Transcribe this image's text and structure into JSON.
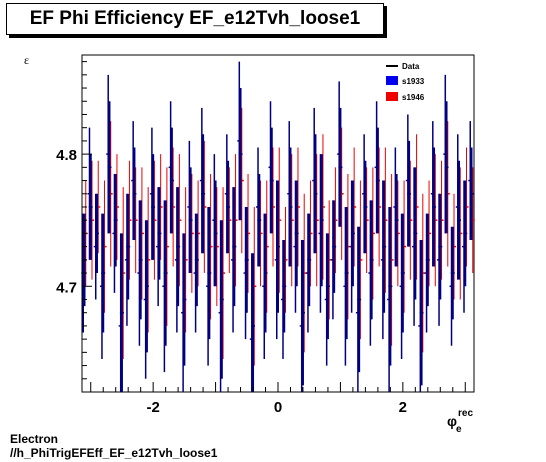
{
  "title": "EF Phi Efficiency EF_e12Tvh_loose1",
  "footer": {
    "line1": "Electron",
    "line2": "//h_PhiTrigEFEff_EF_e12Tvh_loose1"
  },
  "chart_data": {
    "type": "scatter",
    "title": "EF Phi Efficiency EF_e12Tvh_loose1",
    "ylabel": "ε",
    "xlabel": "φ",
    "xlabel_sup": "rec",
    "xlabel_sub": "e",
    "xlim": [
      -3.14,
      3.14
    ],
    "ylim": [
      4.62,
      4.875
    ],
    "xticks": [
      -2,
      0,
      2
    ],
    "yticks": [
      4.7,
      4.8
    ],
    "grid": false,
    "legend_position": "top-right",
    "legend": [
      "Data",
      "s1933",
      "s1946"
    ],
    "colors": {
      "Data": "#000000",
      "s1933": "#0000ee",
      "s1946": "#ee0000",
      "main": "#000080"
    },
    "series": [
      {
        "name": "Data",
        "x": [
          -3.1,
          -3.0,
          -2.9,
          -2.8,
          -2.7,
          -2.6,
          -2.5,
          -2.4,
          -2.3,
          -2.2,
          -2.1,
          -2.0,
          -1.9,
          -1.8,
          -1.7,
          -1.6,
          -1.5,
          -1.4,
          -1.3,
          -1.2,
          -1.1,
          -1.0,
          -0.9,
          -0.8,
          -0.7,
          -0.6,
          -0.5,
          -0.4,
          -0.3,
          -0.2,
          -0.1,
          0.0,
          0.1,
          0.2,
          0.3,
          0.4,
          0.5,
          0.6,
          0.7,
          0.8,
          0.9,
          1.0,
          1.1,
          1.2,
          1.3,
          1.4,
          1.5,
          1.6,
          1.7,
          1.8,
          1.9,
          2.0,
          2.1,
          2.2,
          2.3,
          2.4,
          2.5,
          2.6,
          2.7,
          2.8,
          2.9,
          3.0,
          3.1
        ],
        "y": [
          4.72,
          4.76,
          4.74,
          4.71,
          4.79,
          4.75,
          4.68,
          4.73,
          4.77,
          4.72,
          4.7,
          4.76,
          4.74,
          4.71,
          4.78,
          4.73,
          4.69,
          4.75,
          4.72,
          4.77,
          4.71,
          4.74,
          4.69,
          4.76,
          4.73,
          4.8,
          4.72,
          4.67,
          4.75,
          4.71,
          4.78,
          4.73,
          4.7,
          4.76,
          4.74,
          4.68,
          4.72,
          4.77,
          4.75,
          4.7,
          4.73,
          4.79,
          4.71,
          4.74,
          4.69,
          4.76,
          4.72,
          4.78,
          4.73,
          4.7,
          4.75,
          4.71,
          4.77,
          4.74,
          4.68,
          4.72,
          4.76,
          4.73,
          4.79,
          4.71,
          4.75,
          4.74,
          4.77
        ],
        "err": [
          0.035,
          0.04,
          0.03,
          0.045,
          0.05,
          0.035,
          0.06,
          0.04,
          0.035,
          0.045,
          0.05,
          0.04,
          0.035,
          0.055,
          0.04,
          0.045,
          0.05,
          0.04,
          0.035,
          0.045,
          0.05,
          0.04,
          0.06,
          0.035,
          0.045,
          0.05,
          0.04,
          0.055,
          0.035,
          0.045,
          0.04,
          0.05,
          0.035,
          0.045,
          0.04,
          0.055,
          0.035,
          0.045,
          0.05,
          0.04,
          0.035,
          0.045,
          0.05,
          0.04,
          0.055,
          0.035,
          0.045,
          0.04,
          0.05,
          0.06,
          0.035,
          0.045,
          0.04,
          0.05,
          0.055,
          0.035,
          0.045,
          0.04,
          0.05,
          0.035,
          0.045,
          0.04,
          0.035
        ]
      },
      {
        "name": "s1933",
        "x": [
          -3.12,
          -3.02,
          -2.92,
          -2.82,
          -2.72,
          -2.62,
          -2.52,
          -2.42,
          -2.32,
          -2.22,
          -2.12,
          -2.02,
          -1.92,
          -1.82,
          -1.72,
          -1.62,
          -1.52,
          -1.42,
          -1.32,
          -1.22,
          -1.12,
          -1.02,
          -0.92,
          -0.82,
          -0.72,
          -0.62,
          -0.52,
          -0.42,
          -0.32,
          -0.22,
          -0.12,
          -0.02,
          0.08,
          0.18,
          0.28,
          0.38,
          0.48,
          0.58,
          0.68,
          0.78,
          0.88,
          0.98,
          1.08,
          1.18,
          1.28,
          1.38,
          1.48,
          1.58,
          1.68,
          1.78,
          1.88,
          1.98,
          2.08,
          2.18,
          2.28,
          2.38,
          2.48,
          2.58,
          2.68,
          2.78,
          2.88,
          2.98,
          3.08
        ],
        "y": [
          4.71,
          4.77,
          4.73,
          4.7,
          4.8,
          4.74,
          4.67,
          4.72,
          4.78,
          4.71,
          4.69,
          4.77,
          4.73,
          4.7,
          4.79,
          4.72,
          4.68,
          4.76,
          4.71,
          4.78,
          4.7,
          4.75,
          4.68,
          4.77,
          4.72,
          4.81,
          4.71,
          4.66,
          4.76,
          4.7,
          4.79,
          4.72,
          4.69,
          4.77,
          4.73,
          4.67,
          4.71,
          4.78,
          4.74,
          4.69,
          4.72,
          4.8,
          4.7,
          4.73,
          4.68,
          4.77,
          4.71,
          4.79,
          4.72,
          4.69,
          4.76,
          4.7,
          4.78,
          4.73,
          4.67,
          4.71,
          4.77,
          4.72,
          4.8,
          4.7,
          4.76,
          4.73,
          4.78
        ],
        "err": [
          0.045,
          0.05,
          0.04,
          0.055,
          0.06,
          0.045,
          0.07,
          0.05,
          0.045,
          0.055,
          0.06,
          0.05,
          0.045,
          0.065,
          0.05,
          0.055,
          0.06,
          0.05,
          0.045,
          0.055,
          0.06,
          0.05,
          0.07,
          0.045,
          0.055,
          0.06,
          0.05,
          0.065,
          0.045,
          0.055,
          0.05,
          0.06,
          0.045,
          0.055,
          0.05,
          0.065,
          0.045,
          0.055,
          0.06,
          0.05,
          0.045,
          0.055,
          0.06,
          0.05,
          0.065,
          0.045,
          0.055,
          0.05,
          0.06,
          0.07,
          0.045,
          0.055,
          0.05,
          0.06,
          0.065,
          0.045,
          0.055,
          0.05,
          0.06,
          0.045,
          0.055,
          0.05,
          0.045
        ]
      },
      {
        "name": "s1946",
        "x": [
          -3.08,
          -2.98,
          -2.88,
          -2.78,
          -2.68,
          -2.58,
          -2.48,
          -2.38,
          -2.28,
          -2.18,
          -2.08,
          -1.98,
          -1.88,
          -1.78,
          -1.68,
          -1.58,
          -1.48,
          -1.38,
          -1.28,
          -1.18,
          -1.08,
          -0.98,
          -0.88,
          -0.78,
          -0.68,
          -0.58,
          -0.48,
          -0.38,
          -0.28,
          -0.18,
          -0.08,
          0.02,
          0.12,
          0.22,
          0.32,
          0.42,
          0.52,
          0.62,
          0.72,
          0.82,
          0.92,
          1.02,
          1.12,
          1.22,
          1.32,
          1.42,
          1.52,
          1.62,
          1.72,
          1.82,
          1.92,
          2.02,
          2.12,
          2.22,
          2.32,
          2.42,
          2.52,
          2.62,
          2.72,
          2.82,
          2.92,
          3.02,
          3.12
        ],
        "y": [
          4.74,
          4.75,
          4.76,
          4.73,
          4.77,
          4.76,
          4.71,
          4.75,
          4.75,
          4.74,
          4.72,
          4.75,
          4.76,
          4.73,
          4.76,
          4.75,
          4.72,
          4.74,
          4.74,
          4.76,
          4.73,
          4.73,
          4.71,
          4.75,
          4.75,
          4.78,
          4.74,
          4.7,
          4.74,
          4.73,
          4.76,
          4.75,
          4.72,
          4.75,
          4.76,
          4.71,
          4.74,
          4.75,
          4.76,
          4.72,
          4.75,
          4.77,
          4.73,
          4.76,
          4.72,
          4.75,
          4.74,
          4.76,
          4.75,
          4.72,
          4.74,
          4.73,
          4.75,
          4.76,
          4.71,
          4.74,
          4.75,
          4.75,
          4.77,
          4.73,
          4.74,
          4.76,
          4.75
        ],
        "err": [
          0.04,
          0.045,
          0.035,
          0.05,
          0.055,
          0.04,
          0.065,
          0.045,
          0.04,
          0.05,
          0.055,
          0.045,
          0.04,
          0.06,
          0.045,
          0.05,
          0.055,
          0.045,
          0.04,
          0.05,
          0.055,
          0.045,
          0.065,
          0.04,
          0.05,
          0.055,
          0.045,
          0.06,
          0.04,
          0.05,
          0.045,
          0.055,
          0.04,
          0.05,
          0.045,
          0.06,
          0.04,
          0.05,
          0.055,
          0.045,
          0.04,
          0.05,
          0.055,
          0.045,
          0.06,
          0.04,
          0.05,
          0.045,
          0.055,
          0.065,
          0.04,
          0.05,
          0.045,
          0.055,
          0.06,
          0.04,
          0.05,
          0.045,
          0.055,
          0.04,
          0.05,
          0.045,
          0.04
        ]
      }
    ]
  }
}
